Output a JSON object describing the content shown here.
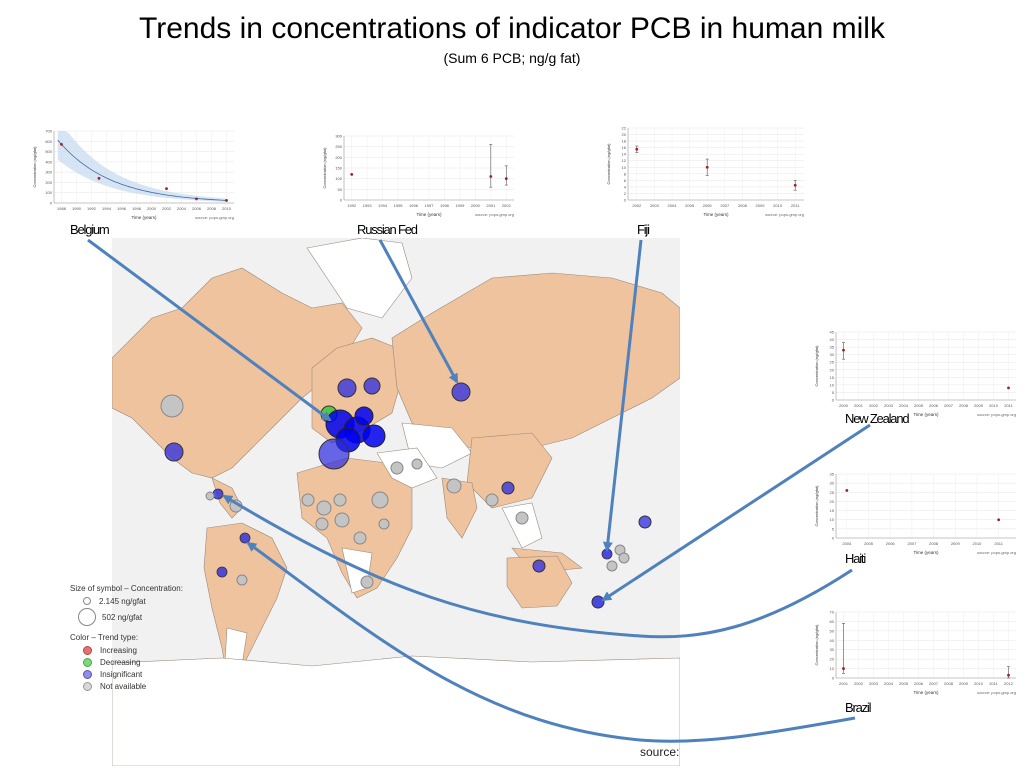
{
  "title": "Trends in concentrations of indicator PCB in human milk",
  "subtitle": "(Sum 6 PCB; ng/g fat)",
  "source_text": "source:",
  "legend": {
    "size_header": "Size of symbol – Concentration:",
    "size_small": "2.145 ng/gfat",
    "size_large": "502 ng/gfat",
    "color_header": "Color – Trend type:",
    "items": [
      {
        "label": "Increasing",
        "color": "#e57373"
      },
      {
        "label": "Decreasing",
        "color": "#7ed67e"
      },
      {
        "label": "Insignificant",
        "color": "#8f8fe6"
      },
      {
        "label": "Not available",
        "color": "#d8d8d8"
      }
    ]
  },
  "colors": {
    "land": "#eec39d",
    "land_na": "#ffffff",
    "ocean": "#f1f1f1",
    "arrow": "#4f81bd",
    "insignificant": "#2a2ae0",
    "decreasing": "#39c63a",
    "not_available": "#b8b8b8"
  },
  "chart_data": [
    {
      "type": "line",
      "label": "Belgium",
      "xlabel": "Time (years)",
      "ylabel": "Concentration (ng/gfat)",
      "source": "source: pops-gmp.org",
      "xticks": [
        "1988",
        "1990",
        "1992",
        "1994",
        "1996",
        "1998",
        "2000",
        "2002",
        "2004",
        "2006",
        "2008",
        "2010"
      ],
      "xlim": [
        1987,
        2011
      ],
      "ylim": [
        0,
        700
      ],
      "yticks": [
        "0",
        "100",
        "200",
        "300",
        "400",
        "500",
        "600",
        "700"
      ],
      "x": [
        1988,
        1993,
        2002,
        2006,
        2010
      ],
      "y": [
        570,
        240,
        140,
        40,
        25
      ],
      "fit": true
    },
    {
      "type": "scatter",
      "label": "Russian Fed",
      "xlabel": "Time (years)",
      "ylabel": "Concentration (ng/gfat)",
      "source": "source: pops-gmp.org",
      "xticks": [
        "1992",
        "1993",
        "1994",
        "1995",
        "1996",
        "1997",
        "1998",
        "1999",
        "2000",
        "2001",
        "2002"
      ],
      "xlim": [
        1991.5,
        2002.5
      ],
      "ylim": [
        0,
        300
      ],
      "yticks": [
        "0",
        "50",
        "100",
        "150",
        "200",
        "250",
        "300"
      ],
      "x": [
        1992,
        2001,
        2002
      ],
      "y": [
        120,
        110,
        100
      ],
      "err": [
        [
          0,
          0
        ],
        [
          60,
          260
        ],
        [
          70,
          160
        ]
      ]
    },
    {
      "type": "scatter",
      "label": "Fiji",
      "xlabel": "Time (years)",
      "ylabel": "Concentration (ng/gfat)",
      "source": "source: pops-gmp.org",
      "xticks": [
        "2002",
        "2003",
        "2004",
        "2005",
        "2006",
        "2007",
        "2008",
        "2009",
        "2010",
        "2011"
      ],
      "xlim": [
        2001.5,
        2011.5
      ],
      "ylim": [
        0,
        22
      ],
      "yticks": [
        "0",
        "2",
        "4",
        "6",
        "8",
        "10",
        "12",
        "14",
        "16",
        "18",
        "20",
        "22"
      ],
      "x": [
        2002,
        2006,
        2011
      ],
      "y": [
        15.5,
        10,
        4.5
      ],
      "err": [
        [
          14.5,
          16.5
        ],
        [
          7.5,
          12.5
        ],
        [
          3,
          6
        ]
      ]
    },
    {
      "type": "scatter",
      "label": "New Zealand",
      "xlabel": "Time (years)",
      "ylabel": "Concentration (ng/gfat)",
      "source": "source: pops-gmp.org",
      "xticks": [
        "2000",
        "2001",
        "2002",
        "2003",
        "2004",
        "2005",
        "2006",
        "2007",
        "2008",
        "2009",
        "2010",
        "2011"
      ],
      "xlim": [
        1999.5,
        2011.5
      ],
      "ylim": [
        0,
        45
      ],
      "yticks": [
        "0",
        "5",
        "10",
        "15",
        "20",
        "25",
        "30",
        "35",
        "40",
        "45"
      ],
      "x": [
        2000,
        2011
      ],
      "y": [
        33,
        8
      ],
      "err": [
        [
          27,
          38
        ],
        [
          0,
          0
        ]
      ]
    },
    {
      "type": "scatter",
      "label": "Haiti",
      "xlabel": "Time (years)",
      "ylabel": "Concentration (ng/gfat)",
      "source": "source: pops-gmp.org",
      "xticks": [
        "2004",
        "2005",
        "2006",
        "2007",
        "2008",
        "2009",
        "2010",
        "2011"
      ],
      "xlim": [
        2003.5,
        2011.8
      ],
      "ylim": [
        0,
        35
      ],
      "yticks": [
        "0",
        "5",
        "10",
        "15",
        "20",
        "25",
        "30",
        "35"
      ],
      "x": [
        2004,
        2011
      ],
      "y": [
        26,
        10
      ],
      "err": [
        [
          0,
          0
        ],
        [
          0,
          0
        ]
      ]
    },
    {
      "type": "scatter",
      "label": "Brazil",
      "xlabel": "Time (years)",
      "ylabel": "Concentration (ng/gfat)",
      "source": "source: pops-gmp.org",
      "xticks": [
        "2001",
        "2002",
        "2003",
        "2004",
        "2005",
        "2006",
        "2007",
        "2008",
        "2009",
        "2010",
        "2011",
        "2012"
      ],
      "xlim": [
        2000.5,
        2012.5
      ],
      "ylim": [
        0,
        70
      ],
      "yticks": [
        "0",
        "10",
        "20",
        "30",
        "40",
        "50",
        "60",
        "70"
      ],
      "x": [
        2001,
        2012
      ],
      "y": [
        10,
        3
      ],
      "err": [
        [
          5,
          58
        ],
        [
          0,
          12
        ]
      ]
    }
  ]
}
